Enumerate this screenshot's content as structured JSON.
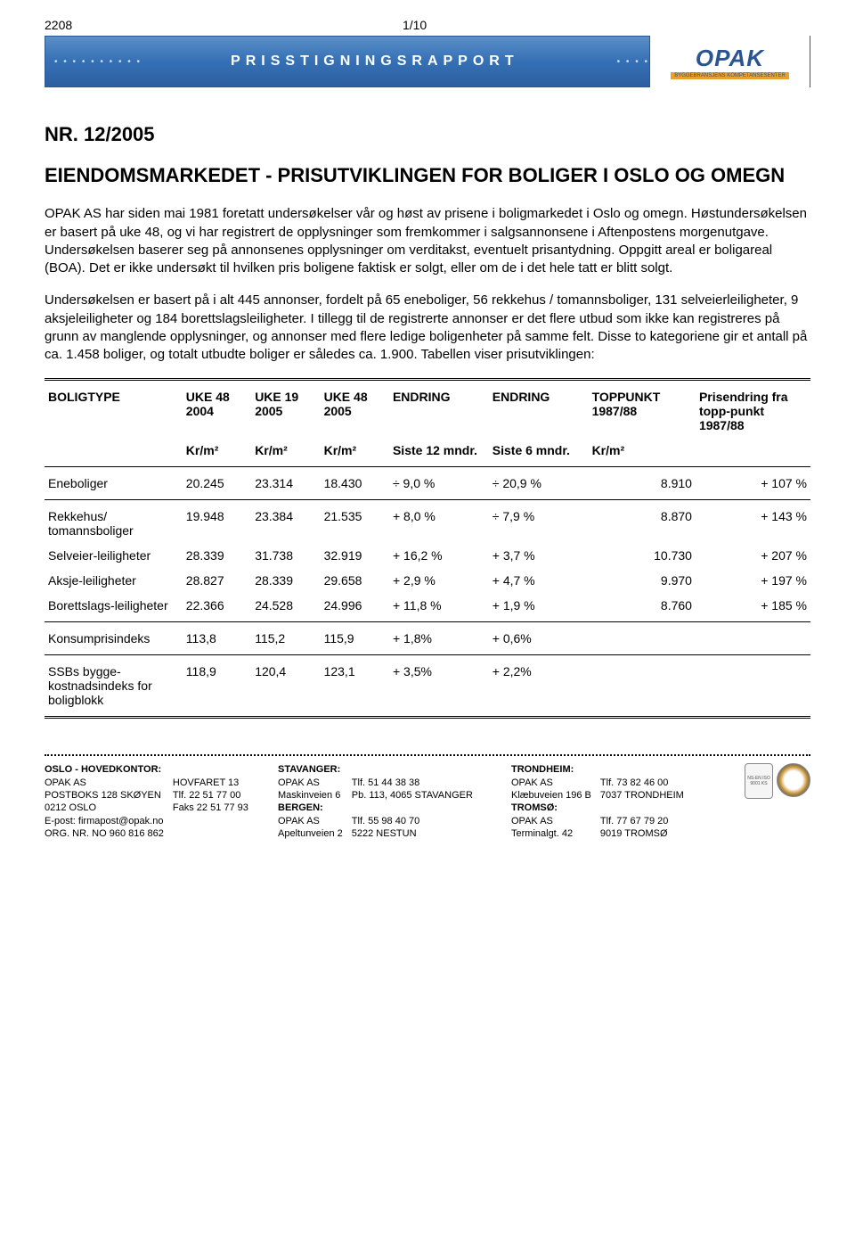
{
  "header": {
    "left_code": "2208",
    "page_num": "1/10"
  },
  "banner": {
    "text": "PRISSTIGNINGSRAPPORT",
    "logo_main": "OPAK",
    "logo_sub": "BYGGEBRANSJENS KOMPETANSESENTER"
  },
  "title": {
    "nr": "NR. 12/2005",
    "main": "EIENDOMSMARKEDET - PRISUTVIKLINGEN FOR BOLIGER I OSLO OG OMEGN"
  },
  "paragraphs": {
    "p1": "OPAK AS har siden mai 1981 foretatt undersøkelser vår og høst av prisene i boligmarkedet i Oslo og omegn. Høstundersøkelsen er basert på uke 48, og vi har registrert de opplysninger som fremkommer i salgsannonsene i Aftenpostens morgenutgave. Undersøkelsen baserer seg på annonsenes opplysninger om verditakst, eventuelt prisantydning. Oppgitt areal er boligareal (BOA). Det er ikke undersøkt til hvilken pris boligene faktisk er solgt, eller om de i det hele tatt er blitt solgt.",
    "p2": "Undersøkelsen er basert på i alt 445 annonser, fordelt på 65 eneboliger, 56 rekkehus / tomannsboliger, 131 selveierleiligheter, 9 aksjeleiligheter og 184 borettslagsleiligheter. I tillegg til de registrerte annonser er det flere utbud som ikke kan registreres på grunn av manglende opplysninger, og annonser med flere ledige boligenheter på samme felt. Disse to kategoriene gir et antall på ca. 1.458 boliger, og totalt utbudte boliger er således ca. 1.900. Tabellen viser prisutviklingen:"
  },
  "table": {
    "head": {
      "col0": "BOLIGTYPE",
      "col1_top": "UKE 48 2004",
      "col2_top": "UKE 19 2005",
      "col3_top": "UKE 48 2005",
      "col4_top": "ENDRING",
      "col5_top": "ENDRING",
      "col6_top": "TOPPUNKT 1987/88",
      "col7_top": "Prisendring fra topp-punkt 1987/88",
      "unit": "Kr/m²",
      "sub4": "Siste 12 mndr.",
      "sub5": "Siste 6 mndr."
    },
    "rows": [
      {
        "name": "Eneboliger",
        "c1": "20.245",
        "c2": "23.314",
        "c3": "18.430",
        "c4": "÷ 9,0 %",
        "c5": "÷ 20,9 %",
        "c6": "8.910",
        "c7": "+ 107 %",
        "hr_after": true
      },
      {
        "name": "Rekkehus/ tomannsboliger",
        "c1": "19.948",
        "c2": "23.384",
        "c3": "21.535",
        "c4": "+ 8,0 %",
        "c5": "÷ 7,9 %",
        "c6": "8.870",
        "c7": "+ 143 %"
      },
      {
        "name": "Selveier-leiligheter",
        "c1": "28.339",
        "c2": "31.738",
        "c3": "32.919",
        "c4": "+ 16,2 %",
        "c5": "+  3,7 %",
        "c6": "10.730",
        "c7": "+ 207 %"
      },
      {
        "name": "Aksje-leiligheter",
        "c1": "28.827",
        "c2": "28.339",
        "c3": "29.658",
        "c4": "+  2,9 %",
        "c5": "+  4,7 %",
        "c6": "9.970",
        "c7": "+ 197 %"
      },
      {
        "name": "Borettslags-leiligheter",
        "c1": "22.366",
        "c2": "24.528",
        "c3": "24.996",
        "c4": "+  11,8 %",
        "c5": "+  1,9 %",
        "c6": "8.760",
        "c7": "+ 185 %",
        "hr_after": true
      },
      {
        "name": "Konsumprisindeks",
        "c1": "113,8",
        "c2": "115,2",
        "c3": "115,9",
        "c4": "+   1,8%",
        "c5": "+  0,6%",
        "c6": "",
        "c7": "",
        "hr_after": true
      },
      {
        "name": "SSBs bygge-kostnadsindeks for boligblokk",
        "c1": "118,9",
        "c2": "120,4",
        "c3": "123,1",
        "c4": "+   3,5%",
        "c5": "+  2,2%",
        "c6": "",
        "c7": ""
      }
    ]
  },
  "footer": {
    "col1": {
      "hd": "OSLO - HOVEDKONTOR:",
      "l1": "OPAK AS",
      "l2": "POSTBOKS 128 SKØYEN",
      "l3": "0212 OSLO",
      "l4": "E-post: firmapost@opak.no",
      "l5": "ORG. NR. NO 960 816 862"
    },
    "col1b": {
      "l1": "HOVFARET 13",
      "l2": "Tlf.   22 51 77 00",
      "l3": "Faks 22 51 77 93"
    },
    "col2": {
      "hd": "STAVANGER:",
      "l1": "OPAK AS",
      "l2": "Maskinveien 6",
      "hd2": "BERGEN:",
      "l3": "OPAK AS",
      "l4": "Apeltunveien 2"
    },
    "col2b": {
      "l1": "Tlf. 51 44 38 38",
      "l2": "Pb. 113, 4065 STAVANGER",
      "l3": "Tlf. 55 98 40 70",
      "l4": "5222 NESTUN"
    },
    "col3": {
      "hd": "TRONDHEIM:",
      "l1": "OPAK AS",
      "l2": "Klæbuveien 196 B",
      "hd2": "TROMSØ:",
      "l3": "OPAK AS",
      "l4": "Terminalgt. 42"
    },
    "col3b": {
      "l1": "Tlf. 73 82 46 00",
      "l2": "7037 TRONDHEIM",
      "l3": "Tlf. 77 67 79 20",
      "l4": "9019 TROMSØ"
    }
  }
}
